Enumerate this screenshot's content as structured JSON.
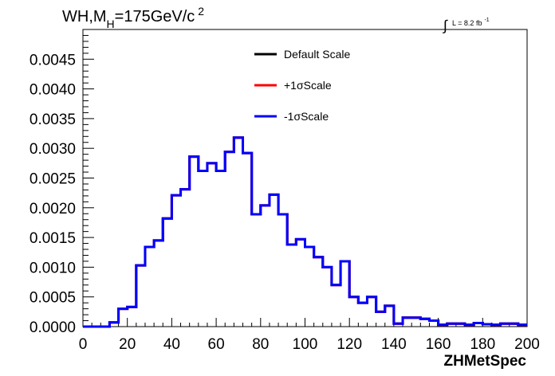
{
  "chart_data": {
    "type": "line",
    "title": "WH,M",
    "title_sub": "H",
    "title_rest": "=175GeV/c",
    "title_sup": "2",
    "lumi_label": "L = 8.2 fb",
    "lumi_sup": "-1",
    "xlabel": "ZHMetSpec",
    "ylabel": "",
    "xlim": [
      0,
      200
    ],
    "ylim": [
      0,
      0.005
    ],
    "x_ticks": [
      "0",
      "20",
      "40",
      "60",
      "80",
      "100",
      "120",
      "140",
      "160",
      "180",
      "200"
    ],
    "y_ticks": [
      "0.0000",
      "0.0005",
      "0.0010",
      "0.0015",
      "0.0020",
      "0.0025",
      "0.0030",
      "0.0035",
      "0.0040",
      "0.0045"
    ],
    "bin_edges": [
      0,
      4,
      8,
      12,
      16,
      20,
      24,
      28,
      32,
      36,
      40,
      44,
      48,
      52,
      56,
      60,
      64,
      68,
      72,
      76,
      80,
      84,
      88,
      92,
      96,
      100,
      104,
      108,
      112,
      116,
      120,
      124,
      128,
      132,
      136,
      140,
      144,
      148,
      152,
      156,
      160,
      164,
      168,
      172,
      176,
      180,
      184,
      188,
      192,
      196,
      200
    ],
    "series": [
      {
        "name": "Default Scale",
        "color": "#000000",
        "values": [
          0.0,
          0.0,
          0.0,
          7e-05,
          0.0003,
          0.00033,
          0.00103,
          0.00134,
          0.00145,
          0.00182,
          0.00221,
          0.00231,
          0.00286,
          0.00262,
          0.00275,
          0.00262,
          0.00294,
          0.00318,
          0.00292,
          0.00189,
          0.00204,
          0.00222,
          0.00189,
          0.00138,
          0.00147,
          0.00134,
          0.00117,
          0.001,
          0.0007,
          0.0011,
          0.0005,
          0.0004,
          0.0005,
          0.00025,
          0.00035,
          5e-05,
          0.00015,
          0.00015,
          0.00013,
          0.0001,
          3e-05,
          5e-05,
          5e-05,
          3e-05,
          6e-05,
          4e-05,
          3e-05,
          5e-05,
          5e-05,
          3e-05
        ]
      },
      {
        "name": "+1σScale",
        "color": "#ff0000",
        "values": [
          0.0,
          0.0,
          0.0,
          7e-05,
          0.0003,
          0.00033,
          0.00103,
          0.00134,
          0.00145,
          0.00182,
          0.00221,
          0.00231,
          0.00286,
          0.00262,
          0.00275,
          0.00262,
          0.00294,
          0.00318,
          0.00292,
          0.00189,
          0.00204,
          0.00222,
          0.00189,
          0.00138,
          0.00147,
          0.00134,
          0.00117,
          0.001,
          0.0007,
          0.0011,
          0.0005,
          0.0004,
          0.0005,
          0.00025,
          0.00035,
          5e-05,
          0.00015,
          0.00015,
          0.00013,
          0.0001,
          3e-05,
          5e-05,
          5e-05,
          3e-05,
          6e-05,
          4e-05,
          3e-05,
          5e-05,
          5e-05,
          3e-05
        ]
      },
      {
        "name": "-1σScale",
        "color": "#0000ff",
        "values": [
          0.0,
          0.0,
          0.0,
          7e-05,
          0.0003,
          0.00033,
          0.00103,
          0.00134,
          0.00145,
          0.00182,
          0.00221,
          0.00231,
          0.00286,
          0.00262,
          0.00275,
          0.00262,
          0.00294,
          0.00318,
          0.00292,
          0.00189,
          0.00204,
          0.00222,
          0.00189,
          0.00138,
          0.00147,
          0.00134,
          0.00117,
          0.001,
          0.0007,
          0.0011,
          0.0005,
          0.0004,
          0.0005,
          0.00025,
          0.00035,
          5e-05,
          0.00015,
          0.00015,
          0.00013,
          0.0001,
          3e-05,
          5e-05,
          5e-05,
          3e-05,
          6e-05,
          4e-05,
          3e-05,
          5e-05,
          5e-05,
          3e-05
        ]
      }
    ],
    "grid": false,
    "legend_position": "top-right"
  }
}
